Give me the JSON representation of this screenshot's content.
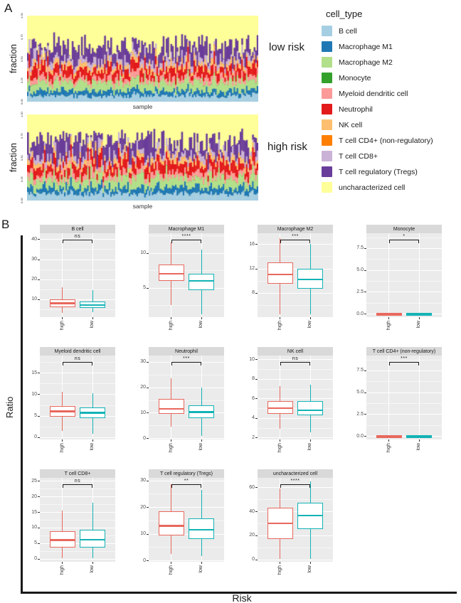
{
  "figure": {
    "panel_a_label": "A",
    "panel_b_label": "B"
  },
  "panel_a": {
    "y_tick_labels": [
      "1.00",
      "0.75",
      "0.50",
      "0.25",
      "0.00"
    ],
    "legend": {
      "title": "cell_type",
      "items": [
        {
          "label": "B cell",
          "color": "#A6CEE3"
        },
        {
          "label": "Macrophage M1",
          "color": "#1F78B4"
        },
        {
          "label": "Macrophage M2",
          "color": "#B2DF8A"
        },
        {
          "label": "Monocyte",
          "color": "#33A02C"
        },
        {
          "label": "Myeloid dendritic cell",
          "color": "#FB9A99"
        },
        {
          "label": "Neutrophil",
          "color": "#E31A1C"
        },
        {
          "label": "NK cell",
          "color": "#FDBF6F"
        },
        {
          "label": "T cell CD4+ (non-regulatory)",
          "color": "#FF7F00"
        },
        {
          "label": "T cell CD8+",
          "color": "#CAB2D6"
        },
        {
          "label": "T cell regulatory (Tregs)",
          "color": "#6A3D9A"
        },
        {
          "label": "uncharacterized cell",
          "color": "#FFFF99"
        }
      ]
    }
  },
  "chart_data": [
    {
      "type": "bar",
      "stacked": true,
      "title": "low risk",
      "xlabel": "sample",
      "ylabel": "fraction",
      "ylim": [
        0,
        1
      ],
      "n_samples": 150,
      "categories": [
        "B cell",
        "Macrophage M1",
        "Macrophage M2",
        "Monocyte",
        "Myeloid dendritic cell",
        "Neutrophil",
        "NK cell",
        "T cell CD4+ (non-regulatory)",
        "T cell CD8+",
        "T cell regulatory (Tregs)",
        "uncharacterized cell"
      ],
      "mean_fractions": [
        0.072,
        0.061,
        0.102,
        0.003,
        0.057,
        0.104,
        0.049,
        0.003,
        0.062,
        0.118,
        0.369
      ],
      "colors": [
        "#A6CEE3",
        "#1F78B4",
        "#B2DF8A",
        "#33A02C",
        "#FB9A99",
        "#E31A1C",
        "#FDBF6F",
        "#FF7F00",
        "#CAB2D6",
        "#6A3D9A",
        "#FFFF99"
      ]
    },
    {
      "type": "bar",
      "stacked": true,
      "title": "high risk",
      "xlabel": "sample",
      "ylabel": "fraction",
      "ylim": [
        0,
        1
      ],
      "n_samples": 150,
      "categories": [
        "B cell",
        "Macrophage M1",
        "Macrophage M2",
        "Monocyte",
        "Myeloid dendritic cell",
        "Neutrophil",
        "NK cell",
        "T cell CD4+ (non-regulatory)",
        "T cell CD8+",
        "T cell regulatory (Tregs)",
        "uncharacterized cell"
      ],
      "mean_fractions": [
        0.081,
        0.071,
        0.11,
        0.003,
        0.06,
        0.116,
        0.05,
        0.003,
        0.061,
        0.131,
        0.314
      ],
      "colors": [
        "#A6CEE3",
        "#1F78B4",
        "#B2DF8A",
        "#33A02C",
        "#FB9A99",
        "#E31A1C",
        "#FDBF6F",
        "#FF7F00",
        "#CAB2D6",
        "#6A3D9A",
        "#FFFF99"
      ]
    },
    {
      "type": "boxplot",
      "layout": "grid-4cols",
      "xlabel": "Risk",
      "ylabel": "Ratio",
      "groups": [
        "high",
        "low"
      ],
      "group_colors": {
        "high": "#E8685D",
        "low": "#14B3B5"
      },
      "panels": [
        {
          "title": "B cell",
          "significance": "ns",
          "ylim": [
            1,
            43
          ],
          "yticks": [
            10,
            20,
            30,
            40
          ],
          "ytick_labels": [
            "10",
            "20",
            "30",
            "40"
          ],
          "high": {
            "whisker_low": 3,
            "q1": 6,
            "median": 8,
            "q3": 10,
            "whisker_high": 16
          },
          "low": {
            "whisker_low": 3.5,
            "q1": 5.5,
            "median": 7,
            "q3": 9,
            "whisker_high": 14.5
          }
        },
        {
          "title": "Macrophage M1",
          "significance": "****",
          "ylim": [
            0.8,
            12.8
          ],
          "yticks": [
            5,
            10
          ],
          "ytick_labels": [
            "5",
            "10"
          ],
          "high": {
            "whisker_low": 2.5,
            "q1": 6,
            "median": 7,
            "q3": 8.3,
            "whisker_high": 11.5
          },
          "low": {
            "whisker_low": 1.2,
            "q1": 4.7,
            "median": 6,
            "q3": 7,
            "whisker_high": 10.5
          }
        },
        {
          "title": "Macrophage M2",
          "significance": "***",
          "ylim": [
            4,
            17.8
          ],
          "yticks": [
            8,
            12,
            16
          ],
          "ytick_labels": [
            "8",
            "12",
            "16"
          ],
          "high": {
            "whisker_low": 4.5,
            "q1": 9.5,
            "median": 11,
            "q3": 13,
            "whisker_high": 17
          },
          "low": {
            "whisker_low": 4.5,
            "q1": 8.7,
            "median": 10.2,
            "q3": 12,
            "whisker_high": 16
          }
        },
        {
          "title": "Monocyte",
          "significance": "*",
          "ylim": [
            -0.4,
            9.2
          ],
          "yticks": [
            0,
            2.5,
            5,
            7.5
          ],
          "ytick_labels": [
            "0.0",
            "2.5",
            "5.0",
            "7.5"
          ],
          "high": {
            "whisker_low": 0,
            "q1": 0,
            "median": 0.03,
            "q3": 0.07,
            "whisker_high": 0.12
          },
          "low": {
            "whisker_low": 0,
            "q1": 0,
            "median": 0.02,
            "q3": 0.05,
            "whisker_high": 0.1
          }
        },
        {
          "title": "Myeloid dendritic cell",
          "significance": "ns",
          "ylim": [
            -0.5,
            19
          ],
          "yticks": [
            0,
            5,
            10,
            15
          ],
          "ytick_labels": [
            "0",
            "5",
            "10",
            "15"
          ],
          "high": {
            "whisker_low": 1.5,
            "q1": 4.8,
            "median": 6,
            "q3": 7.2,
            "whisker_high": 10.5
          },
          "low": {
            "whisker_low": 0.8,
            "q1": 4.4,
            "median": 5.7,
            "q3": 6.9,
            "whisker_high": 10.3
          }
        },
        {
          "title": "Neutrophil",
          "significance": "***",
          "ylim": [
            -0.5,
            32.5
          ],
          "yticks": [
            0,
            10,
            20,
            30
          ],
          "ytick_labels": [
            "0",
            "10",
            "20",
            "30"
          ],
          "high": {
            "whisker_low": 4.5,
            "q1": 9.5,
            "median": 11.5,
            "q3": 15.5,
            "whisker_high": 23.5
          },
          "low": {
            "whisker_low": 1,
            "q1": 8,
            "median": 10.3,
            "q3": 13,
            "whisker_high": 20
          }
        },
        {
          "title": "NK cell",
          "significance": "ns",
          "ylim": [
            1.8,
            10.4
          ],
          "yticks": [
            2,
            4,
            6,
            8,
            10
          ],
          "ytick_labels": [
            "2",
            "4",
            "6",
            "8",
            "10"
          ],
          "high": {
            "whisker_low": 2.9,
            "q1": 4.4,
            "median": 5,
            "q3": 5.7,
            "whisker_high": 7.3
          },
          "low": {
            "whisker_low": 2.5,
            "q1": 4.3,
            "median": 4.8,
            "q3": 5.7,
            "whisker_high": 7.4
          }
        },
        {
          "title": "T cell CD4+ (non-regulatory)",
          "significance": "***",
          "ylim": [
            -0.4,
            9.2
          ],
          "yticks": [
            0,
            2.5,
            5,
            7.5
          ],
          "ytick_labels": [
            "0.0",
            "2.5",
            "5.0",
            "7.5"
          ],
          "high": {
            "whisker_low": 0,
            "q1": 0,
            "median": 0.03,
            "q3": 0.07,
            "whisker_high": 0.12
          },
          "low": {
            "whisker_low": 0,
            "q1": 0,
            "median": 0.02,
            "q3": 0.05,
            "whisker_high": 0.1
          }
        },
        {
          "title": "T cell CD8+",
          "significance": "ns",
          "ylim": [
            -1,
            26
          ],
          "yticks": [
            0,
            5,
            10,
            15,
            20,
            25
          ],
          "ytick_labels": [
            "0",
            "5",
            "10",
            "15",
            "20",
            "25"
          ],
          "high": {
            "whisker_low": 0.2,
            "q1": 3.5,
            "median": 6,
            "q3": 8.8,
            "whisker_high": 15.5
          },
          "low": {
            "whisker_low": 0.2,
            "q1": 3.5,
            "median": 6.1,
            "q3": 9.3,
            "whisker_high": 18
          }
        },
        {
          "title": "T cell regulatory (Tregs)",
          "significance": "**",
          "ylim": [
            -0.5,
            31
          ],
          "yticks": [
            0,
            10,
            20,
            30
          ],
          "ytick_labels": [
            "0",
            "10",
            "20",
            "30"
          ],
          "high": {
            "whisker_low": 2.5,
            "q1": 9.5,
            "median": 13,
            "q3": 18.5,
            "whisker_high": 28.5
          },
          "low": {
            "whisker_low": 1.5,
            "q1": 8,
            "median": 11.5,
            "q3": 15.8,
            "whisker_high": 26.5
          }
        },
        {
          "title": "uncharacterized cell",
          "significance": "****",
          "ylim": [
            -2,
            68
          ],
          "yticks": [
            0,
            20,
            40,
            60
          ],
          "ytick_labels": [
            "0",
            "20",
            "40",
            "60"
          ],
          "high": {
            "whisker_low": 0.5,
            "q1": 17,
            "median": 30,
            "q3": 43,
            "whisker_high": 59
          },
          "low": {
            "whisker_low": 0.5,
            "q1": 25.5,
            "median": 36.5,
            "q3": 47,
            "whisker_high": 65
          }
        }
      ]
    }
  ]
}
